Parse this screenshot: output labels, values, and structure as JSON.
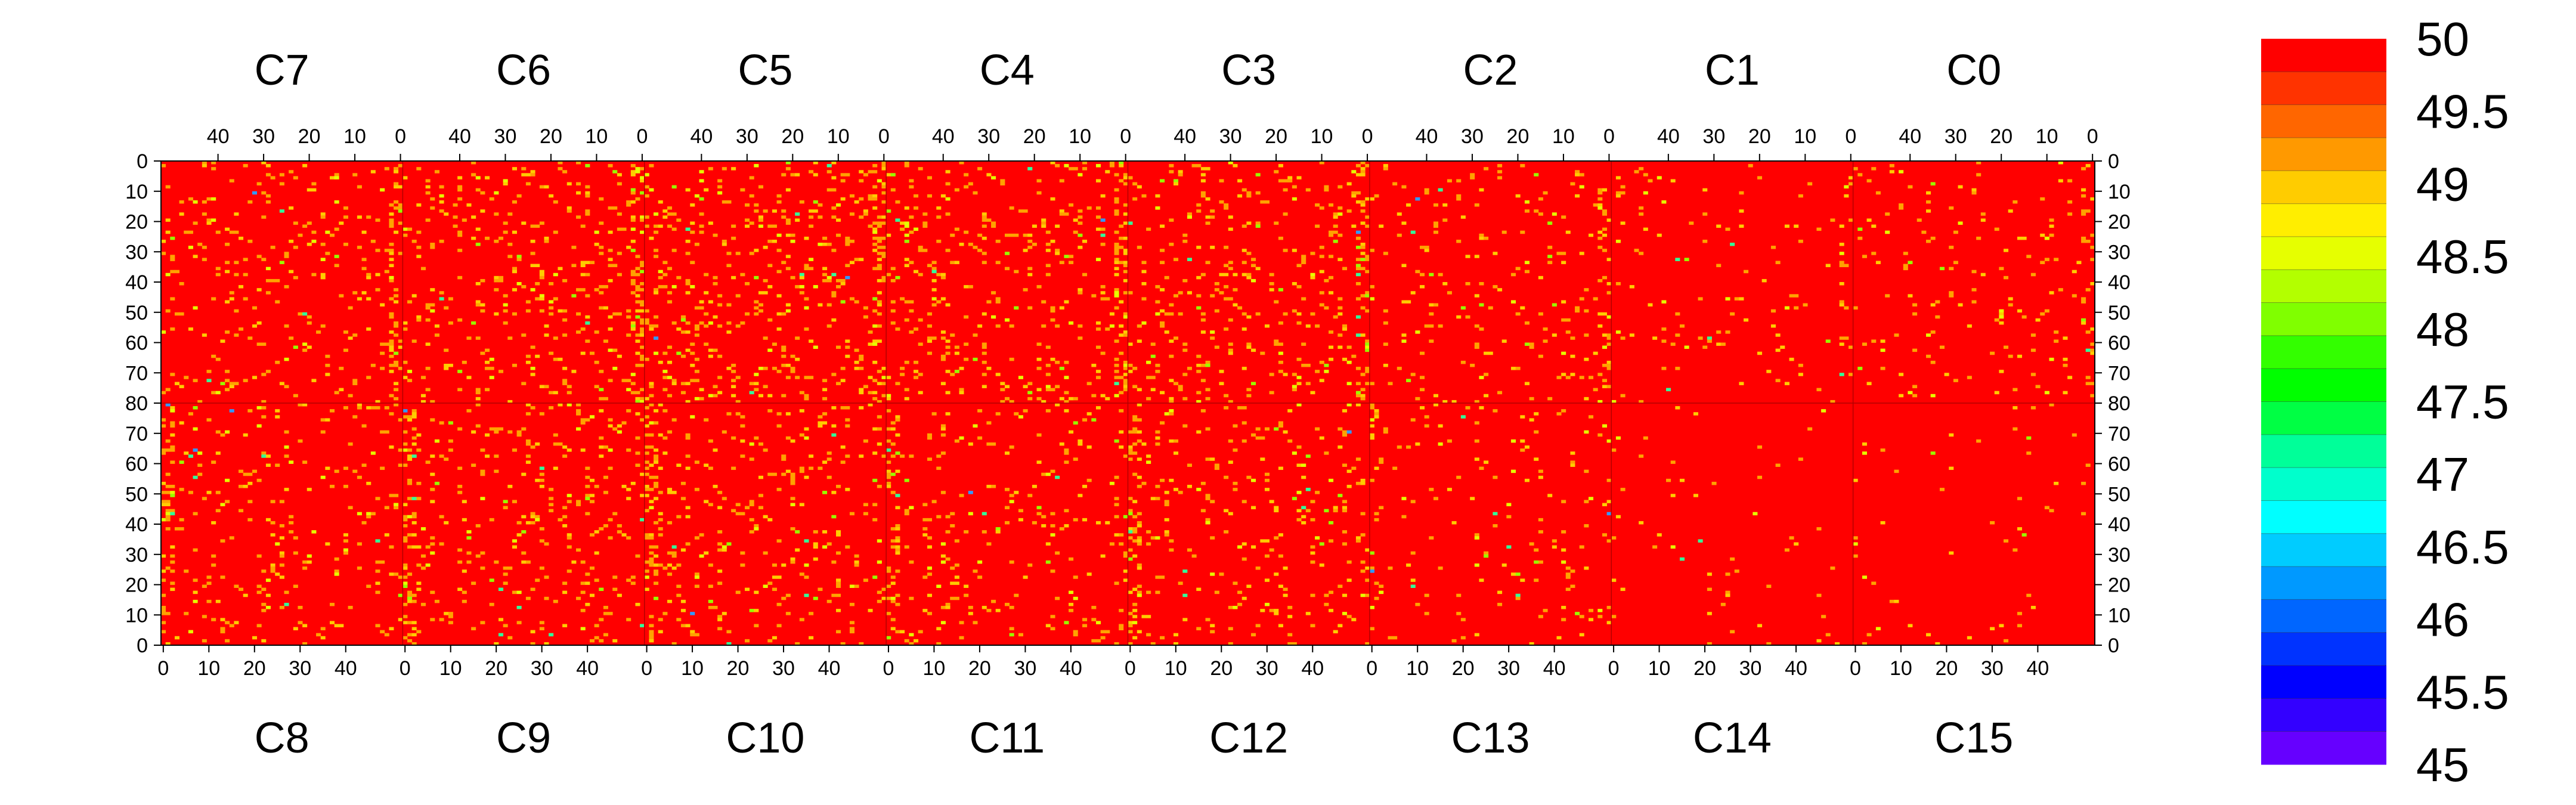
{
  "chart_data": {
    "type": "heatmap",
    "title": "",
    "xlabel": "",
    "ylabel": "",
    "top_chip_labels": [
      "C7",
      "C6",
      "C5",
      "C4",
      "C3",
      "C2",
      "C1",
      "C0"
    ],
    "bottom_chip_labels": [
      "C8",
      "C9",
      "C10",
      "C11",
      "C12",
      "C13",
      "C14",
      "C15"
    ],
    "chip_x_range": [
      0,
      53
    ],
    "row_range_top_half": [
      0,
      80
    ],
    "row_range_bottom_half": [
      80,
      0
    ],
    "top_x_ticks": [
      "40",
      "30",
      "20",
      "10",
      "0"
    ],
    "bottom_x_ticks": [
      "0",
      "10",
      "20",
      "30",
      "40"
    ],
    "y_ticks_top_half": [
      "0",
      "10",
      "20",
      "30",
      "40",
      "50",
      "60",
      "70",
      "80"
    ],
    "y_ticks_bottom_half": [
      "70",
      "60",
      "50",
      "40",
      "30",
      "20",
      "10",
      "0"
    ],
    "value_range": [
      45,
      50
    ],
    "colorbar_ticks": [
      "50",
      "49.5",
      "49",
      "48.5",
      "48",
      "47.5",
      "47",
      "46.5",
      "46",
      "45.5",
      "45"
    ],
    "colorbar_colors": [
      "#ff0000",
      "#ff3300",
      "#ff6600",
      "#ff9900",
      "#ffcc00",
      "#ffee00",
      "#e6ff00",
      "#b3ff00",
      "#80ff00",
      "#33ff00",
      "#00ff00",
      "#00ff44",
      "#00ff99",
      "#00ffcc",
      "#00ffff",
      "#00ccff",
      "#0099ff",
      "#0066ff",
      "#0033ff",
      "#0000ff",
      "#3300ff",
      "#6600ff"
    ],
    "dominant_value": 50,
    "cell_colors": {
      "50": "#ff0000",
      "49.5": "#ffa200",
      "49": "#ffcc00",
      "48.5": "#e6ff00",
      "48": "#99ff00",
      "47": "#33ff99",
      "46": "#3399ff"
    },
    "chip_deviation_fraction": {
      "C7": 0.06,
      "C6": 0.08,
      "C5": 0.09,
      "C4": 0.08,
      "C3": 0.08,
      "C2": 0.05,
      "C1": 0.025,
      "C0": 0.035,
      "C8": 0.055,
      "C9": 0.07,
      "C10": 0.07,
      "C11": 0.055,
      "C12": 0.065,
      "C13": 0.035,
      "C14": 0.012,
      "C15": 0.01
    }
  }
}
